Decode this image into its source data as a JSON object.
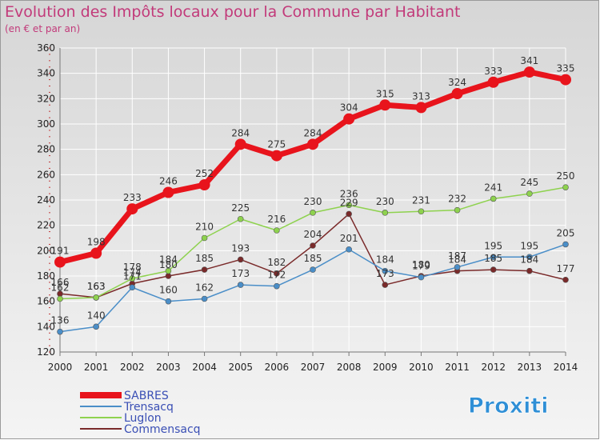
{
  "chart_data": {
    "type": "line",
    "title": "Evolution des Impôts locaux pour la Commune par Habitant",
    "subtitle": "(en € et par an)",
    "xlabel": "",
    "ylabel": "",
    "categories": [
      "2000",
      "2001",
      "2002",
      "2003",
      "2004",
      "2005",
      "2006",
      "2007",
      "2008",
      "2009",
      "2010",
      "2011",
      "2012",
      "2013",
      "2014"
    ],
    "ylim": [
      120,
      360
    ],
    "yticks": [
      120,
      140,
      160,
      180,
      200,
      220,
      240,
      260,
      280,
      300,
      320,
      340,
      360
    ],
    "series": [
      {
        "name": "SABRES",
        "color": "#e8141c",
        "values": [
          191,
          198,
          233,
          246,
          252,
          284,
          275,
          284,
          304,
          315,
          313,
          324,
          333,
          341,
          335
        ]
      },
      {
        "name": "Trensacq",
        "color": "#4a8ec8",
        "values": [
          136,
          140,
          171,
          160,
          162,
          173,
          172,
          185,
          201,
          184,
          179,
          187,
          195,
          195,
          205
        ]
      },
      {
        "name": "Luglon",
        "color": "#8ed24e",
        "values": [
          162,
          163,
          178,
          184,
          210,
          225,
          216,
          230,
          236,
          230,
          231,
          232,
          241,
          245,
          250
        ]
      },
      {
        "name": "Commensacq",
        "color": "#7a2a2a",
        "values": [
          166,
          163,
          174,
          180,
          185,
          193,
          182,
          204,
          229,
          173,
          180,
          184,
          185,
          184,
          177
        ]
      }
    ]
  },
  "logo": "Proxiti"
}
